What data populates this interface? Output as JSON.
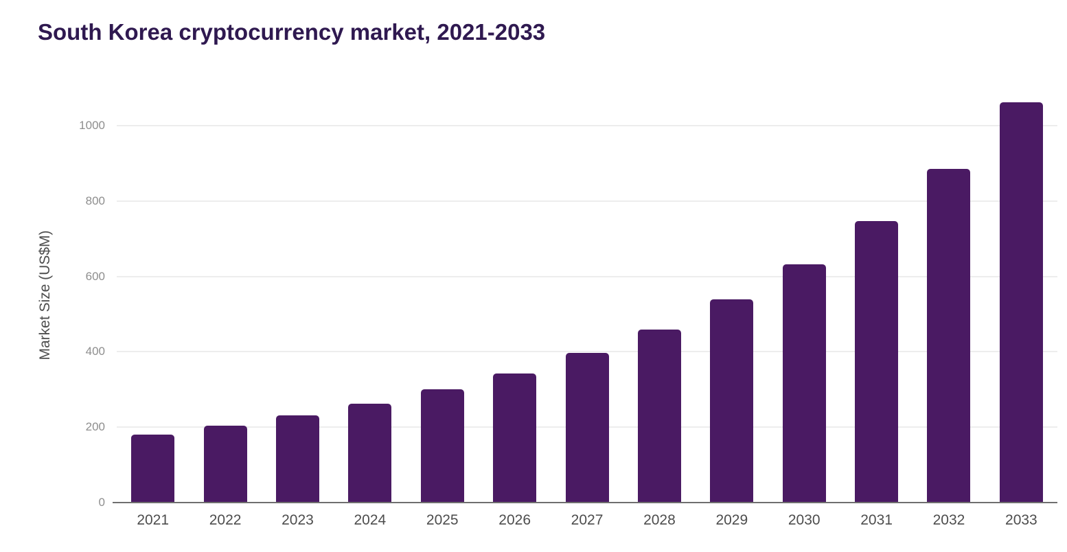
{
  "page": {
    "background_color": "#ffffff"
  },
  "chart_data": {
    "type": "bar",
    "title": "South Korea cryptocurrency market, 2021-2033",
    "xlabel": "",
    "ylabel": "Market Size (US$M)",
    "categories": [
      "2021",
      "2022",
      "2023",
      "2024",
      "2025",
      "2026",
      "2027",
      "2028",
      "2029",
      "2030",
      "2031",
      "2032",
      "2033"
    ],
    "values": [
      180,
      204,
      231,
      263,
      300,
      342,
      397,
      459,
      539,
      632,
      746,
      886,
      1061
    ],
    "yticks": [
      0,
      200,
      400,
      600,
      800,
      1000
    ],
    "ylim": [
      0,
      1100
    ],
    "grid": true,
    "legend": false,
    "colors": {
      "bar": "#4a1a63",
      "title": "#2f1950",
      "gridline": "#ededed",
      "axis_line": "#6f6f6f",
      "y_tick_label": "#8e8e8e",
      "x_tick_label": "#4d4d4d",
      "axis_title": "#4d4d4d"
    }
  }
}
